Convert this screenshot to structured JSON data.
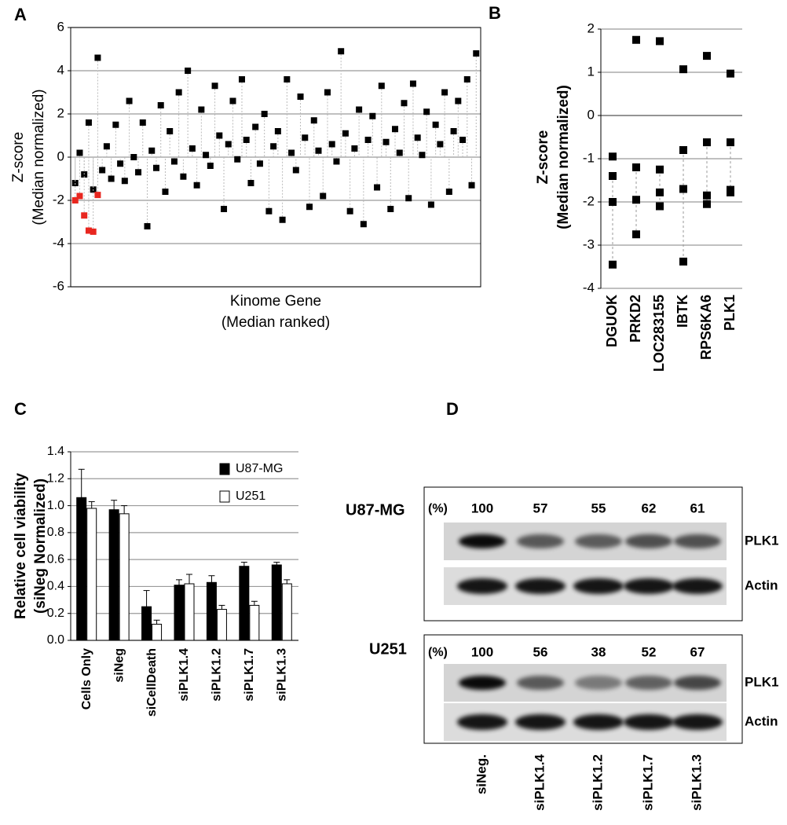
{
  "panel_labels": [
    "A",
    "B",
    "C",
    "D"
  ],
  "chart_data": [
    {
      "type": "scatter",
      "x_label": [
        "Kinome Gene",
        "(Median ranked)"
      ],
      "y_label": [
        "Z-score",
        "(Median normalized)"
      ],
      "xlim": [
        0,
        91
      ],
      "ylim": [
        -6,
        6
      ],
      "yticks": [
        -6,
        -4,
        -2,
        0,
        2,
        4,
        6
      ],
      "grid": true,
      "series": [
        {
          "color": "#000000",
          "x": [
            1,
            2,
            3,
            4,
            5,
            6,
            7,
            8,
            9,
            10,
            11,
            12,
            13,
            14,
            15,
            16,
            17,
            18,
            19,
            20,
            21,
            22,
            23,
            24,
            25,
            26,
            27,
            28,
            29,
            30,
            31,
            32,
            33,
            34,
            35,
            36,
            37,
            38,
            39,
            40,
            41,
            42,
            43,
            44,
            45,
            46,
            47,
            48,
            49,
            50,
            51,
            52,
            53,
            54,
            55,
            56,
            57,
            58,
            59,
            60,
            61,
            62,
            63,
            64,
            65,
            66,
            67,
            68,
            69,
            70,
            71,
            72,
            73,
            74,
            75,
            76,
            77,
            78,
            79,
            80,
            81,
            82,
            83,
            84,
            85,
            86,
            87,
            88,
            89,
            90
          ],
          "values": [
            -1.2,
            0.2,
            -0.8,
            1.6,
            -1.5,
            4.6,
            -0.6,
            0.5,
            -1.0,
            1.5,
            -0.3,
            -1.1,
            2.6,
            0.0,
            -0.7,
            1.6,
            -3.2,
            0.3,
            -0.5,
            2.4,
            -1.6,
            1.2,
            -0.2,
            3.0,
            -0.9,
            4.0,
            0.4,
            -1.3,
            2.2,
            0.1,
            -0.4,
            3.3,
            1.0,
            -2.4,
            0.6,
            2.6,
            -0.1,
            3.6,
            0.8,
            -1.2,
            1.4,
            -0.3,
            2.0,
            -2.5,
            0.5,
            1.2,
            -2.9,
            3.6,
            0.2,
            -0.6,
            2.8,
            0.9,
            -2.3,
            1.7,
            0.3,
            -1.8,
            3.0,
            0.6,
            -0.2,
            4.9,
            1.1,
            -2.5,
            0.4,
            2.2,
            -3.1,
            0.8,
            1.9,
            -1.4,
            3.3,
            0.7,
            -2.4,
            1.3,
            0.2,
            2.5,
            -1.9,
            3.4,
            0.9,
            0.1,
            2.1,
            -2.2,
            1.5,
            0.6,
            3.0,
            -1.6,
            1.2,
            2.6,
            0.8,
            3.6,
            -1.3,
            4.8
          ]
        },
        {
          "color": "#e8261f",
          "x": [
            1,
            2,
            3,
            4,
            5,
            6
          ],
          "values": [
            -2.0,
            -1.8,
            -2.7,
            -3.4,
            -3.45,
            -1.75
          ]
        }
      ]
    },
    {
      "type": "dot",
      "y_label": [
        "Z-score",
        "(Median normalized)"
      ],
      "categories": [
        "DGUOK",
        "PRKD2",
        "LOC283155",
        "IBTK",
        "RPS6KA6",
        "PLK1"
      ],
      "ylim": [
        -4,
        2
      ],
      "yticks": [
        -4,
        -3,
        -2,
        -1,
        0,
        1,
        2
      ],
      "grid": true,
      "color": "#000000",
      "series": [
        {
          "values": [
            -0.95,
            1.75,
            1.72,
            1.07,
            1.38,
            0.97
          ]
        },
        {
          "values": [
            -1.4,
            -1.2,
            -1.25,
            -0.8,
            -0.62,
            -0.62
          ]
        },
        {
          "values": [
            -2.0,
            -1.95,
            -1.78,
            -1.7,
            -1.85,
            -1.72
          ]
        },
        {
          "values": [
            -3.45,
            -2.75,
            -2.1,
            -3.38,
            -2.05,
            -1.78
          ]
        }
      ]
    },
    {
      "type": "bar",
      "y_label": [
        "Relative cell viability",
        "(siNeg Normalized)"
      ],
      "categories": [
        "Cells Only",
        "siNeg",
        "siCellDeath",
        "siPLK1.4",
        "siPLK1.2",
        "siPLK1.7",
        "siPLK1.3"
      ],
      "ylim": [
        0,
        1.4
      ],
      "yticks": [
        {
          "value": 0,
          "label": "0.0"
        },
        0.2,
        0.4,
        0.6,
        0.8,
        {
          "value": 1,
          "label": "1.0"
        },
        1.2,
        1.4
      ],
      "grid": true,
      "legend": "top-right",
      "series": [
        {
          "name": "U87-MG",
          "color": "#000000",
          "values": [
            1.06,
            0.97,
            0.25,
            0.41,
            0.43,
            0.55,
            0.56
          ],
          "errors": [
            0.21,
            0.07,
            0.12,
            0.04,
            0.05,
            0.03,
            0.02
          ]
        },
        {
          "name": "U251",
          "color": "#ffffff",
          "values": [
            0.98,
            0.94,
            0.12,
            0.42,
            0.23,
            0.26,
            0.42
          ],
          "errors": [
            0.05,
            0.06,
            0.03,
            0.07,
            0.03,
            0.03,
            0.03
          ]
        }
      ]
    }
  ],
  "blot": {
    "lanes": [
      "siNeg.",
      "siPLK1.4",
      "siPLK1.2",
      "siPLK1.7",
      "siPLK1.3"
    ],
    "panels": [
      {
        "cell_line": "U87-MG",
        "unit": "(%)",
        "percentages": [
          100,
          57,
          55,
          62,
          61
        ],
        "bands": [
          "PLK1",
          "Actin"
        ]
      },
      {
        "cell_line": "U251",
        "unit": "(%)",
        "percentages": [
          100,
          56,
          38,
          52,
          67
        ],
        "bands": [
          "PLK1",
          "Actin"
        ]
      }
    ]
  }
}
